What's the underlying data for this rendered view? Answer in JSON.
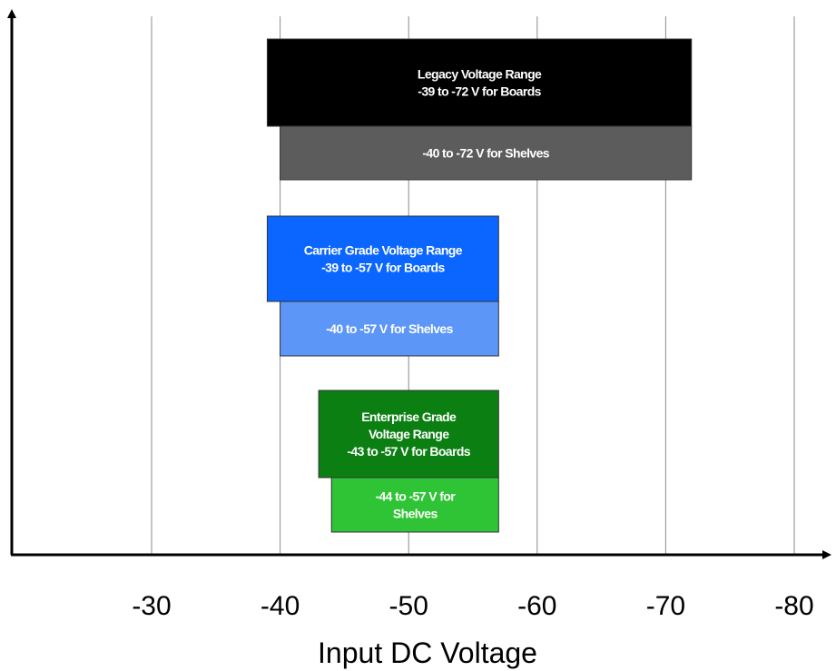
{
  "chart_data": {
    "type": "bar",
    "orientation": "horizontal",
    "xlabel": "Input DC Voltage",
    "ylabel": "",
    "xlim": [
      -19,
      -83
    ],
    "x_ticks": [
      -30,
      -40,
      -50,
      -60,
      -70,
      -80
    ],
    "x_tick_labels": [
      "-30",
      "-40",
      "-50",
      "-60",
      "-70",
      "-80"
    ],
    "grid": "vertical",
    "bars": [
      {
        "group": "Legacy",
        "kind": "Boards",
        "start": -39,
        "end": -72,
        "color": "#000000",
        "lines": [
          "Legacy Voltage Range",
          "-39 to -72 V for Boards"
        ]
      },
      {
        "group": "Legacy",
        "kind": "Shelves",
        "start": -40,
        "end": -72,
        "color": "#5c5c5c",
        "lines": [
          "-40 to -72 V for Shelves"
        ]
      },
      {
        "group": "Carrier Grade",
        "kind": "Boards",
        "start": -39,
        "end": -57,
        "color": "#0a66ff",
        "lines": [
          "Carrier Grade Voltage Range",
          "-39 to -57 V for Boards"
        ]
      },
      {
        "group": "Carrier Grade",
        "kind": "Shelves",
        "start": -40,
        "end": -57,
        "color": "#5c96f7",
        "lines": [
          "-40 to -57 V for Shelves"
        ]
      },
      {
        "group": "Enterprise Grade",
        "kind": "Boards",
        "start": -43,
        "end": -57,
        "color": "#0b7f12",
        "lines": [
          "Enterprise Grade",
          "Voltage Range",
          "-43 to -57 V for Boards"
        ]
      },
      {
        "group": "Enterprise Grade",
        "kind": "Shelves",
        "start": -44,
        "end": -57,
        "color": "#2fc435",
        "lines": [
          "-44 to -57 V for",
          "Shelves"
        ]
      }
    ]
  }
}
